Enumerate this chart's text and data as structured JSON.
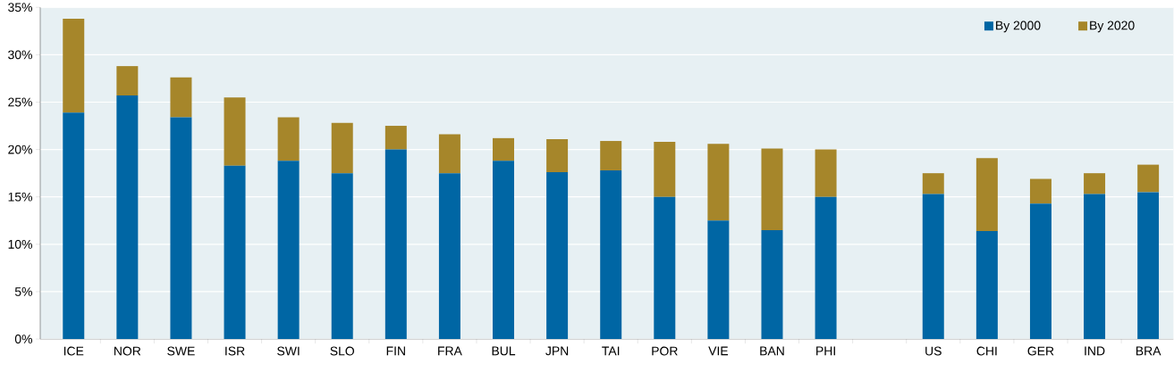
{
  "chart_data": {
    "type": "bar",
    "stacked": true,
    "categories": [
      "ICE",
      "NOR",
      "SWE",
      "ISR",
      "SWI",
      "SLO",
      "FIN",
      "FRA",
      "BUL",
      "JPN",
      "TAI",
      "POR",
      "VIE",
      "BAN",
      "PHI",
      null,
      "US",
      "CHI",
      "GER",
      "IND",
      "BRA"
    ],
    "series": [
      {
        "name": "By 2000",
        "color": "#0066a4",
        "values": [
          23.9,
          25.7,
          23.4,
          18.3,
          18.8,
          17.5,
          20.0,
          17.5,
          18.8,
          17.6,
          17.8,
          15.0,
          12.5,
          11.5,
          15.0,
          null,
          15.3,
          11.4,
          14.3,
          15.3,
          15.5
        ]
      },
      {
        "name": "By 2020",
        "color": "#a6862a",
        "values": [
          9.9,
          3.1,
          4.2,
          7.2,
          4.6,
          5.3,
          2.5,
          4.1,
          2.4,
          3.5,
          3.1,
          5.8,
          8.1,
          8.6,
          5.0,
          null,
          2.2,
          7.7,
          2.6,
          2.2,
          2.9
        ]
      }
    ],
    "ylim": [
      0,
      35
    ],
    "yticks": [
      {
        "value": 0,
        "label": "0%"
      },
      {
        "value": 5,
        "label": "5%"
      },
      {
        "value": 10,
        "label": "10%"
      },
      {
        "value": 15,
        "label": "15%"
      },
      {
        "value": 20,
        "label": "20%"
      },
      {
        "value": 25,
        "label": "25%"
      },
      {
        "value": 30,
        "label": "30%"
      },
      {
        "value": 35,
        "label": "35%"
      }
    ],
    "grid": "y",
    "legend": "top right"
  }
}
